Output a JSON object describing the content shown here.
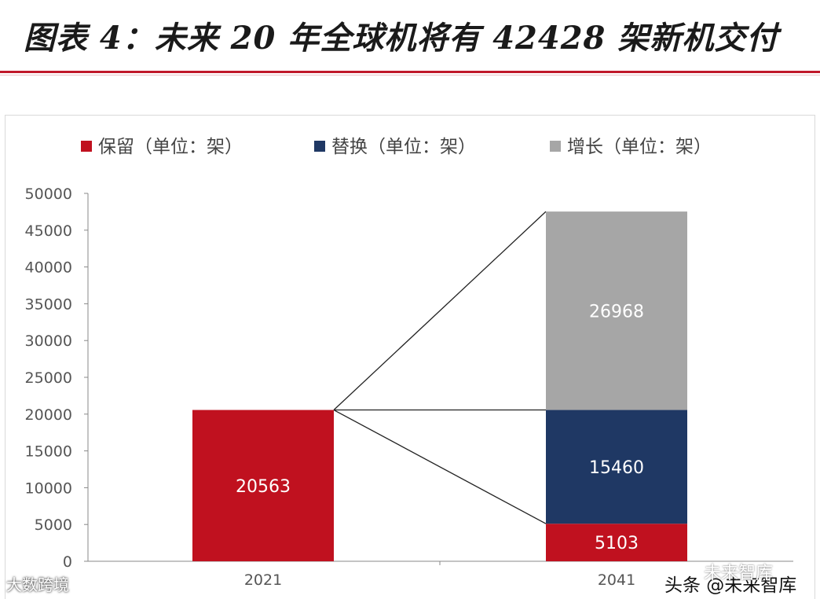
{
  "header": {
    "title": "图表 4：未来 20 年全球机将有 42428 架新机交付"
  },
  "chart_data": {
    "type": "bar",
    "stacked": true,
    "categories": [
      "2021",
      "2041"
    ],
    "series": [
      {
        "name": "保留（单位：架）",
        "color": "#c0111f",
        "values": [
          20563,
          5103
        ]
      },
      {
        "name": "替换（单位：架）",
        "color": "#1f3864",
        "values": [
          0,
          15460
        ]
      },
      {
        "name": "增长（单位：架）",
        "color": "#a6a6a6",
        "values": [
          0,
          26968
        ]
      }
    ],
    "ylim": [
      0,
      50000
    ],
    "yticks": [
      "0",
      "5000",
      "10000",
      "15000",
      "20000",
      "25000",
      "30000",
      "35000",
      "40000",
      "45000",
      "50000"
    ],
    "legend_position": "top",
    "grid": false,
    "data_labels": [
      "20563",
      "5103",
      "15460",
      "26968"
    ]
  },
  "watermarks": {
    "left": "大数跨境",
    "right": "头条 @未来智库",
    "right_ghost": "未来智库"
  }
}
